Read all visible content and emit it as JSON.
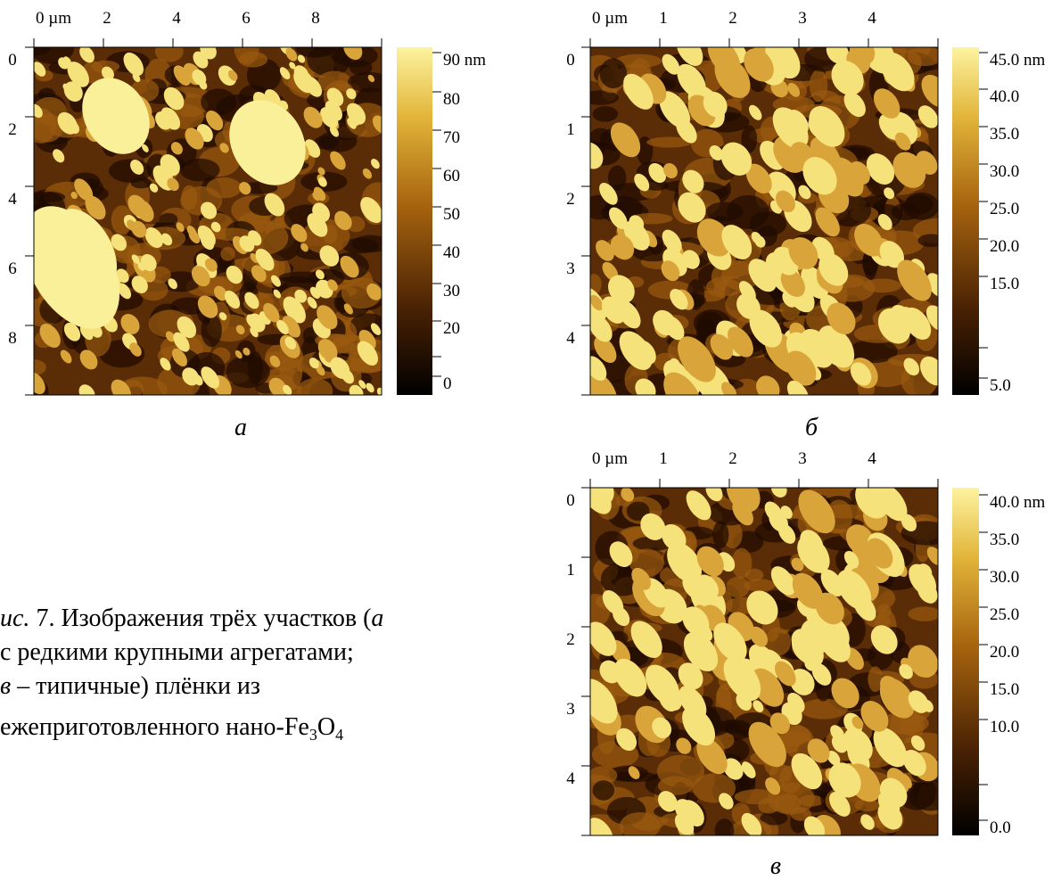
{
  "panels": [
    {
      "x_labels": [
        "0 µm",
        "2",
        "4",
        "6",
        "8"
      ],
      "y_labels": [
        "0",
        "2",
        "4",
        "6",
        "8"
      ],
      "scale_labels": [
        "90 nm",
        "80",
        "70",
        "60",
        "50",
        "40",
        "30",
        "20",
        "0"
      ],
      "letter": "а"
    },
    {
      "x_labels": [
        "0 µm",
        "1",
        "2",
        "3",
        "4"
      ],
      "y_labels": [
        "0",
        "1",
        "2",
        "3",
        "4"
      ],
      "scale_labels": [
        "45.0 nm",
        "40.0",
        "35.0",
        "30.0",
        "25.0",
        "20.0",
        "15.0",
        "5.0"
      ],
      "letter": "б"
    },
    {
      "x_labels": [
        "0 µm",
        "1",
        "2",
        "3",
        "4"
      ],
      "y_labels": [
        "0",
        "1",
        "2",
        "3",
        "4"
      ],
      "scale_labels": [
        "40.0 nm",
        "35.0",
        "30.0",
        "25.0",
        "20.0",
        "15.0",
        "10.0",
        "0.0"
      ],
      "letter": "в"
    }
  ],
  "caption": {
    "line1": [
      "ис.",
      " 7. Изображения трёх участков (",
      "а"
    ],
    "line2": [
      "с редкими крупными агрегатами;"
    ],
    "line3": [
      "в",
      " – типичные) плёнки из"
    ],
    "line4": [
      "ежеприготовленного нано-Fe",
      "3",
      "O",
      "4"
    ]
  }
}
